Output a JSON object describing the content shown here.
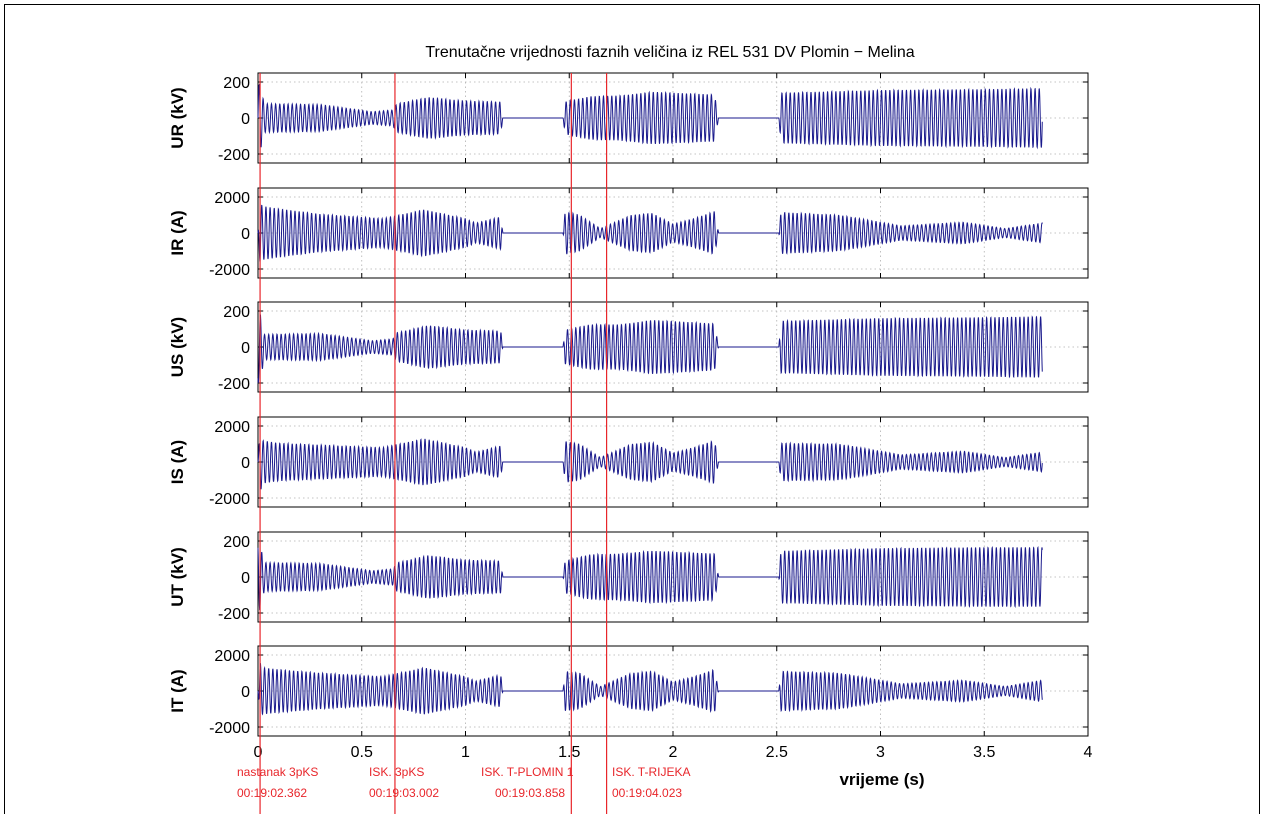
{
  "chart_data": {
    "type": "line",
    "title": "Trenutačne vrijednosti faznih veličina iz REL 531 DV Plomin − Melina",
    "xlabel": "vrijeme (s)",
    "xlim": [
      0,
      4
    ],
    "xticks": [
      0,
      0.5,
      1,
      1.5,
      2,
      2.5,
      3,
      3.5,
      4
    ],
    "xtick_labels": [
      "0",
      "0.5",
      "1",
      "1.5",
      "2",
      "2.5",
      "3",
      "3.5",
      "4"
    ],
    "grid": true,
    "colors": {
      "trace": "#1a1a8c",
      "events": "#e8262b",
      "axes": "#000000"
    },
    "panels": [
      {
        "ylabel": "UR (kV)",
        "ylim": [
          -250,
          250
        ],
        "yticks": [
          -200,
          0,
          200
        ],
        "ytick_labels": [
          "-200",
          "0",
          "200"
        ],
        "envelope": {
          "t": [
            0,
            0.01,
            0.03,
            0.3,
            0.55,
            0.65,
            0.67,
            0.82,
            1.0,
            1.17,
            1.18,
            1.47,
            1.48,
            1.6,
            1.75,
            1.9,
            2.2,
            2.22,
            2.51,
            2.52,
            3.0,
            3.5,
            3.78
          ],
          "amp": [
            180,
            190,
            80,
            75,
            35,
            45,
            80,
            115,
            95,
            90,
            0,
            0,
            90,
            120,
            125,
            145,
            130,
            0,
            0,
            140,
            155,
            160,
            165
          ]
        }
      },
      {
        "ylabel": "IR (A)",
        "ylim": [
          -2500,
          2500
        ],
        "yticks": [
          -2000,
          0,
          2000
        ],
        "ytick_labels": [
          "-2000",
          "0",
          "2000"
        ],
        "envelope": {
          "t": [
            0,
            0.01,
            0.02,
            0.1,
            0.3,
            0.6,
            0.8,
            1.0,
            1.05,
            1.17,
            1.18,
            1.47,
            1.48,
            1.55,
            1.65,
            1.8,
            1.9,
            2.0,
            2.1,
            2.2,
            2.22,
            2.51,
            2.52,
            2.8,
            3.1,
            3.4,
            3.6,
            3.78
          ],
          "amp": [
            0,
            1800,
            1500,
            1350,
            1050,
            800,
            1300,
            800,
            550,
            900,
            0,
            0,
            1200,
            1000,
            250,
            1000,
            1100,
            500,
            800,
            1200,
            0,
            0,
            1150,
            1000,
            400,
            600,
            250,
            550
          ]
        }
      },
      {
        "ylabel": "US (kV)",
        "ylim": [
          -250,
          250
        ],
        "yticks": [
          -200,
          0,
          200
        ],
        "ytick_labels": [
          "-200",
          "0",
          "200"
        ],
        "envelope": {
          "t": [
            0,
            0.01,
            0.03,
            0.3,
            0.55,
            0.65,
            0.67,
            0.82,
            1.0,
            1.17,
            1.18,
            1.47,
            1.48,
            1.6,
            1.75,
            1.9,
            2.2,
            2.22,
            2.51,
            2.52,
            3.0,
            3.5,
            3.78
          ],
          "amp": [
            200,
            190,
            70,
            75,
            35,
            45,
            80,
            120,
            95,
            90,
            0,
            0,
            95,
            125,
            125,
            150,
            130,
            0,
            0,
            145,
            160,
            165,
            170
          ]
        }
      },
      {
        "ylabel": "IS (A)",
        "ylim": [
          -2500,
          2500
        ],
        "yticks": [
          -2000,
          0,
          2000
        ],
        "ytick_labels": [
          "-2000",
          "0",
          "2000"
        ],
        "envelope": {
          "t": [
            0,
            0.01,
            0.02,
            0.1,
            0.3,
            0.6,
            0.8,
            1.0,
            1.05,
            1.17,
            1.18,
            1.47,
            1.48,
            1.55,
            1.65,
            1.8,
            1.9,
            2.0,
            2.1,
            2.2,
            2.22,
            2.51,
            2.52,
            2.8,
            3.1,
            3.4,
            3.6,
            3.78
          ],
          "amp": [
            0,
            1800,
            1200,
            1050,
            950,
            800,
            1300,
            800,
            550,
            900,
            0,
            0,
            1150,
            1000,
            250,
            1000,
            1100,
            500,
            800,
            1200,
            0,
            0,
            1050,
            1000,
            400,
            600,
            250,
            550
          ]
        }
      },
      {
        "ylabel": "UT (kV)",
        "ylim": [
          -250,
          250
        ],
        "yticks": [
          -200,
          0,
          200
        ],
        "ytick_labels": [
          "-200",
          "0",
          "200"
        ],
        "envelope": {
          "t": [
            0,
            0.01,
            0.03,
            0.3,
            0.55,
            0.65,
            0.67,
            0.82,
            1.0,
            1.17,
            1.18,
            1.47,
            1.48,
            1.6,
            1.75,
            1.9,
            2.2,
            2.22,
            2.51,
            2.52,
            3.0,
            3.5,
            3.78
          ],
          "amp": [
            190,
            180,
            80,
            75,
            35,
            45,
            80,
            120,
            95,
            90,
            0,
            0,
            90,
            125,
            130,
            145,
            130,
            0,
            0,
            145,
            160,
            165,
            165
          ]
        }
      },
      {
        "ylabel": "IT (A)",
        "ylim": [
          -2500,
          2500
        ],
        "yticks": [
          -2000,
          0,
          2000
        ],
        "ytick_labels": [
          "-2000",
          "0",
          "2000"
        ],
        "envelope": {
          "t": [
            0,
            0.01,
            0.02,
            0.1,
            0.3,
            0.6,
            0.8,
            1.0,
            1.05,
            1.17,
            1.18,
            1.47,
            1.48,
            1.55,
            1.65,
            1.8,
            1.9,
            2.0,
            2.1,
            2.2,
            2.22,
            2.51,
            2.52,
            2.8,
            3.1,
            3.4,
            3.6,
            3.78
          ],
          "amp": [
            0,
            1600,
            1300,
            1200,
            1000,
            800,
            1300,
            800,
            550,
            900,
            0,
            0,
            1100,
            1000,
            250,
            1000,
            1100,
            500,
            800,
            1200,
            0,
            0,
            1100,
            1000,
            400,
            600,
            250,
            600
          ]
        }
      }
    ],
    "events": [
      {
        "t": 0.01,
        "label": "nastanak 3pKS",
        "time": "00:19:02.362"
      },
      {
        "t": 0.66,
        "label": "ISK. 3pKS",
        "time": "00:19:03.002"
      },
      {
        "t": 1.51,
        "label": "ISK. T-PLOMIN 1",
        "time": "00:19:03.858"
      },
      {
        "t": 1.68,
        "label": "ISK. T-RIJEKA",
        "time": "00:19:04.023"
      }
    ]
  }
}
